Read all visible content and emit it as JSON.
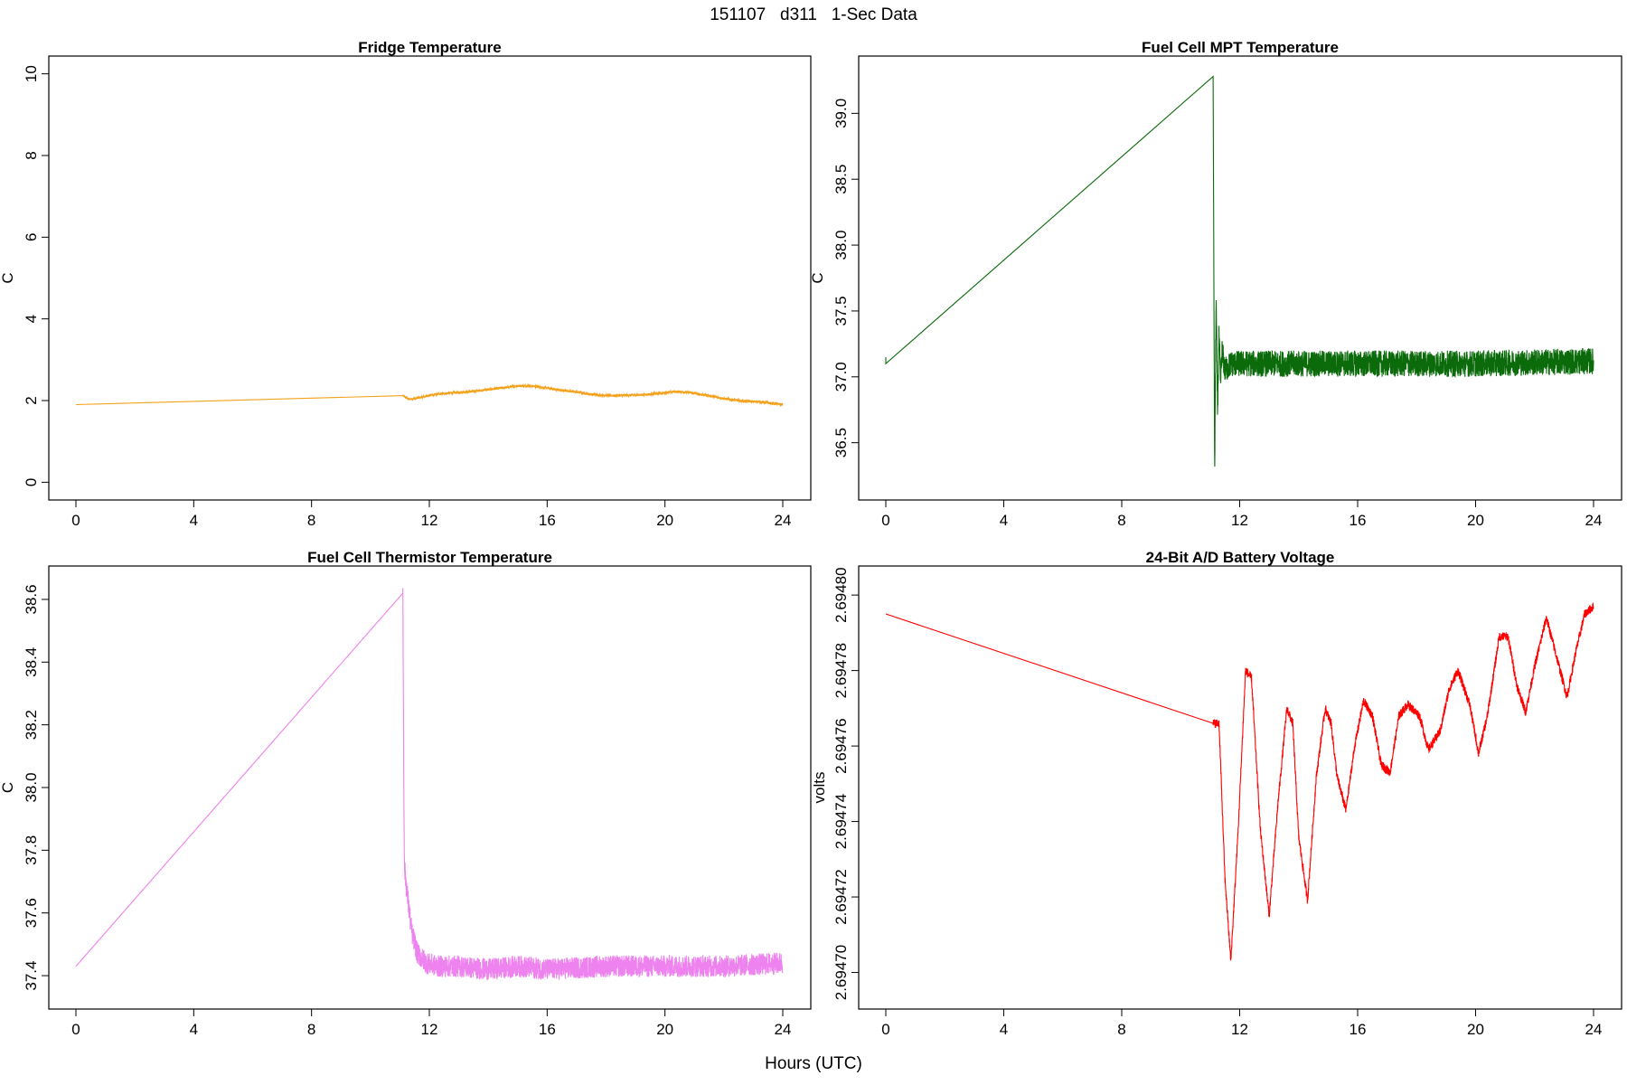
{
  "figure": {
    "title": "151107   d311   1-Sec Data",
    "xlabel": "Hours (UTC)"
  },
  "chart_data": [
    {
      "type": "line",
      "title": "Fridge Temperature",
      "ylabel": "C",
      "xlabel": "",
      "xlim": [
        0,
        24
      ],
      "ylim": [
        0,
        10
      ],
      "xticks": [
        0,
        4,
        8,
        12,
        16,
        20,
        24
      ],
      "yticks": [
        0,
        2,
        4,
        6,
        8,
        10
      ],
      "ytick_labels": [
        "0",
        "2",
        "4",
        "6",
        "8",
        "10"
      ],
      "color": "#f4a11b",
      "noise": 0.03,
      "series": [
        {
          "name": "Fridge Temperature",
          "x": [
            0,
            11.1,
            11.3,
            11.6,
            12.0,
            12.6,
            13.4,
            14.0,
            14.6,
            15.0,
            15.4,
            15.8,
            16.3,
            16.9,
            17.6,
            18.2,
            18.8,
            19.4,
            19.9,
            20.3,
            20.8,
            21.4,
            22.0,
            22.6,
            23.2,
            24.0
          ],
          "y": [
            1.9,
            2.12,
            2.03,
            2.06,
            2.13,
            2.18,
            2.22,
            2.27,
            2.32,
            2.36,
            2.36,
            2.33,
            2.27,
            2.22,
            2.14,
            2.12,
            2.13,
            2.15,
            2.18,
            2.22,
            2.2,
            2.13,
            2.05,
            1.99,
            1.97,
            1.9
          ]
        }
      ]
    },
    {
      "type": "line",
      "title": "Fuel Cell MPT Temperature",
      "ylabel": "C",
      "xlabel": "",
      "xlim": [
        0,
        24
      ],
      "ylim": [
        36.2,
        39.3
      ],
      "xticks": [
        0,
        4,
        8,
        12,
        16,
        20,
        24
      ],
      "yticks": [
        36.5,
        37.0,
        37.5,
        38.0,
        38.5,
        39.0
      ],
      "ytick_labels": [
        "36.5",
        "37.0",
        "37.5",
        "38.0",
        "38.5",
        "39.0"
      ],
      "color": "#0b6b0b",
      "noise": 0.1,
      "series": [
        {
          "name": "Fuel Cell MPT Temperature",
          "x": [
            0,
            0,
            11.05,
            11.1,
            11.15,
            11.2,
            11.25,
            11.3,
            11.35,
            11.4,
            11.5,
            11.7,
            12,
            16,
            20,
            24
          ],
          "y": [
            37.15,
            37.1,
            39.25,
            39.28,
            36.25,
            37.6,
            36.76,
            37.3,
            36.95,
            37.2,
            37.05,
            37.1,
            37.1,
            37.1,
            37.1,
            37.12
          ]
        }
      ]
    },
    {
      "type": "line",
      "title": "Fuel Cell Thermistor Temperature",
      "ylabel": "C",
      "xlabel": "",
      "xlim": [
        0,
        24
      ],
      "ylim": [
        37.35,
        38.65
      ],
      "xticks": [
        0,
        4,
        8,
        12,
        16,
        20,
        24
      ],
      "yticks": [
        37.4,
        37.6,
        37.8,
        38.0,
        38.2,
        38.4,
        38.6
      ],
      "ytick_labels": [
        "37.4",
        "37.6",
        "37.8",
        "38.0",
        "38.2",
        "38.4",
        "38.6"
      ],
      "color": "#ee82ee",
      "noise": 0.035,
      "series": [
        {
          "name": "Fuel Cell Thermistor Temperature",
          "x": [
            0,
            11.05,
            11.1,
            11.15,
            11.25,
            11.4,
            11.6,
            11.9,
            12.3,
            13.0,
            14.0,
            15.0,
            16.0,
            18.0,
            20.0,
            22.0,
            24.0
          ],
          "y": [
            37.43,
            38.55,
            38.62,
            37.75,
            37.66,
            37.54,
            37.47,
            37.44,
            37.43,
            37.43,
            37.42,
            37.43,
            37.42,
            37.43,
            37.43,
            37.43,
            37.44
          ]
        }
      ]
    },
    {
      "type": "line",
      "title": "24-Bit A/D Battery Voltage",
      "ylabel": "volts",
      "xlabel": "",
      "xlim": [
        0,
        24
      ],
      "ylim": [
        2.694695,
        2.694803
      ],
      "xticks": [
        0,
        4,
        8,
        12,
        16,
        20,
        24
      ],
      "yticks": [
        2.6947,
        2.69472,
        2.69474,
        2.69476,
        2.69478,
        2.6948
      ],
      "ytick_labels": [
        "2.69470",
        "2.69472",
        "2.69474",
        "2.69476",
        "2.69478",
        "2.69480"
      ],
      "color": "#ff0000",
      "noise": 1.2e-06,
      "series": [
        {
          "name": "24-Bit A/D Battery Voltage",
          "x": [
            0,
            11.1,
            11.3,
            11.5,
            11.7,
            11.95,
            12.2,
            12.4,
            12.7,
            13.0,
            13.3,
            13.6,
            13.8,
            14.0,
            14.3,
            14.6,
            14.9,
            15.1,
            15.3,
            15.6,
            15.9,
            16.2,
            16.5,
            16.8,
            17.1,
            17.4,
            17.7,
            18.1,
            18.4,
            18.8,
            19.1,
            19.4,
            19.8,
            20.1,
            20.4,
            20.8,
            21.1,
            21.4,
            21.7,
            22.0,
            22.4,
            22.7,
            23.1,
            23.4,
            23.7,
            24.0
          ],
          "y": [
            2.694795,
            2.694766,
            2.694766,
            2.694725,
            2.694703,
            2.694738,
            2.69478,
            2.694778,
            2.694738,
            2.694715,
            2.694745,
            2.69477,
            2.694766,
            2.694736,
            2.694719,
            2.694752,
            2.69477,
            2.694766,
            2.694752,
            2.694743,
            2.69476,
            2.694772,
            2.694768,
            2.694755,
            2.694753,
            2.694768,
            2.694771,
            2.694768,
            2.694759,
            2.694764,
            2.694775,
            2.69478,
            2.694771,
            2.694758,
            2.694768,
            2.694789,
            2.694789,
            2.694776,
            2.694769,
            2.694781,
            2.694794,
            2.694785,
            2.694773,
            2.694785,
            2.694795,
            2.694797
          ]
        }
      ]
    }
  ]
}
